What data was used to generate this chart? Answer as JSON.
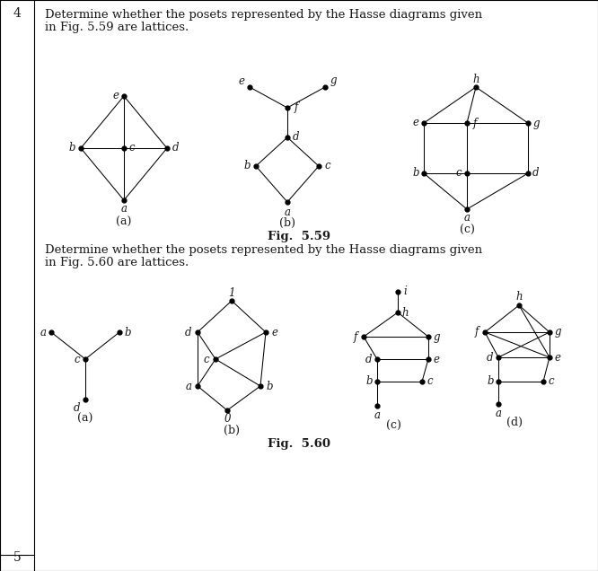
{
  "bg_color": "#ffffff",
  "text_color": "#1a1a1a",
  "title_text1": "Determine whether the posets represented by the Hasse diagrams given",
  "title_text2": "in Fig. 5.59 are lattices.",
  "title_text3": "Determine whether the posets represented by the Hasse diagrams given",
  "title_text4": "in Fig. 5.60 are lattices.",
  "fig559_label": "Fig.  5.59",
  "fig560_label": "Fig.  5.60"
}
